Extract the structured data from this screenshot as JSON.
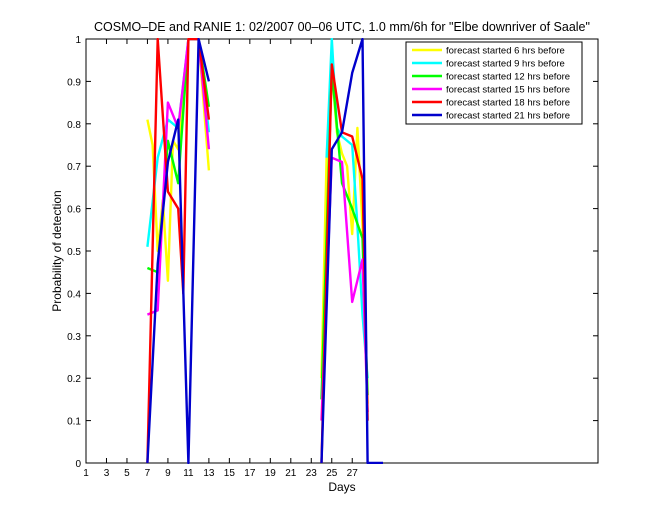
{
  "chart_data": {
    "type": "line",
    "title": "COSMO–DE and RANIE 1: 02/2007 00–06 UTC, 1.0 mm/6h for \"Elbe downriver of Saale\"",
    "xlabel": "Days",
    "ylabel": "Probability of detection",
    "xlim": [
      1,
      51
    ],
    "ylim": [
      0,
      1
    ],
    "xticks": [
      "1",
      "3",
      "5",
      "7",
      "9",
      "11",
      "13",
      "15",
      "17",
      "19",
      "21",
      "23",
      "25",
      "27"
    ],
    "xtick_values": [
      1,
      3,
      5,
      7,
      9,
      11,
      13,
      15,
      17,
      19,
      21,
      23,
      25,
      27
    ],
    "yticks": [
      "0",
      "0.1",
      "0.2",
      "0.3",
      "0.4",
      "0.5",
      "0.6",
      "0.7",
      "0.8",
      "0.9",
      "1"
    ],
    "ytick_values": [
      0,
      0.1,
      0.2,
      0.3,
      0.4,
      0.5,
      0.6,
      0.7,
      0.8,
      0.9,
      1
    ],
    "grid": false,
    "legend_position": "top-right",
    "series": [
      {
        "name": "forecast started 6 hrs before",
        "color": "#ffff00",
        "points": [
          [
            7,
            0.81
          ],
          [
            7.5,
            0.75
          ],
          [
            8,
            0.5
          ],
          [
            8.5,
            0.62
          ],
          [
            9,
            0.43
          ],
          [
            9.5,
            0.76
          ],
          [
            10,
            0.74
          ],
          [
            11,
            1.0
          ],
          [
            12,
            1.0
          ],
          [
            13,
            0.69
          ]
        ],
        "segments": [
          [
            [
              24,
              0.2
            ],
            [
              24.5,
              0.72
            ],
            [
              25,
              0.93
            ],
            [
              25.5,
              0.78
            ],
            [
              26,
              0.73
            ],
            [
              26.5,
              0.7
            ],
            [
              27,
              0.54
            ],
            [
              27.5,
              0.79
            ],
            [
              28,
              0.56
            ],
            [
              28.5,
              0.14
            ]
          ]
        ]
      },
      {
        "name": "forecast started 9 hrs before",
        "color": "#00ffff",
        "points": [
          [
            7,
            0.51
          ],
          [
            8,
            0.72
          ],
          [
            9,
            0.81
          ],
          [
            10,
            0.79
          ],
          [
            11,
            1.0
          ],
          [
            12,
            1.0
          ],
          [
            13,
            0.78
          ]
        ],
        "segments": [
          [
            [
              24.5,
              0.72
            ],
            [
              25,
              1.0
            ],
            [
              25.5,
              0.79
            ],
            [
              26,
              0.77
            ],
            [
              27,
              0.75
            ],
            [
              27.5,
              0.56
            ],
            [
              28,
              0.35
            ],
            [
              28.5,
              0.2
            ]
          ]
        ]
      },
      {
        "name": "forecast started 12 hrs before",
        "color": "#00ff00",
        "points": [
          [
            7,
            0.46
          ],
          [
            8,
            0.45
          ],
          [
            9,
            0.76
          ],
          [
            10,
            0.66
          ],
          [
            11,
            1.0
          ],
          [
            12,
            1.0
          ],
          [
            13,
            0.84
          ]
        ],
        "segments": [
          [
            [
              24,
              0.15
            ],
            [
              25,
              0.93
            ],
            [
              26,
              0.66
            ],
            [
              27,
              0.6
            ],
            [
              28,
              0.53
            ],
            [
              28.5,
              0.16
            ]
          ]
        ]
      },
      {
        "name": "forecast started 15 hrs before",
        "color": "#ff00ff",
        "points": [
          [
            7,
            0.35
          ],
          [
            8,
            0.36
          ],
          [
            9,
            0.85
          ],
          [
            10,
            0.79
          ],
          [
            11,
            1.0
          ],
          [
            12,
            1.0
          ],
          [
            13,
            0.74
          ]
        ],
        "segments": [
          [
            [
              24,
              0.1
            ],
            [
              25,
              0.72
            ],
            [
              26,
              0.71
            ],
            [
              27,
              0.38
            ],
            [
              28,
              0.48
            ],
            [
              28.5,
              0.12
            ]
          ]
        ]
      },
      {
        "name": "forecast started 18 hrs before",
        "color": "#ff0000",
        "points": [
          [
            7,
            0.0
          ],
          [
            8,
            1.0
          ],
          [
            9,
            0.64
          ],
          [
            10,
            0.6
          ],
          [
            10.5,
            0.4
          ],
          [
            11,
            1.0
          ],
          [
            12,
            1.0
          ],
          [
            13,
            0.81
          ]
        ],
        "segments": [
          [
            [
              24,
              0.0
            ],
            [
              25,
              0.94
            ],
            [
              26,
              0.78
            ],
            [
              27,
              0.77
            ],
            [
              28,
              0.67
            ],
            [
              28.5,
              0.1
            ]
          ]
        ]
      },
      {
        "name": "forecast started 21 hrs before",
        "color": "#0000cc",
        "points": [
          [
            7,
            0.0
          ],
          [
            8,
            0.47
          ],
          [
            9,
            0.71
          ],
          [
            10,
            0.81
          ],
          [
            11,
            0.0
          ],
          [
            12,
            1.0
          ],
          [
            13,
            0.9
          ]
        ],
        "segments": [
          [
            [
              24,
              0.0
            ],
            [
              25,
              0.74
            ],
            [
              26,
              0.78
            ],
            [
              27,
              0.92
            ],
            [
              28,
              1.0
            ],
            [
              28.5,
              0.0
            ],
            [
              30,
              0.0
            ]
          ]
        ]
      }
    ]
  }
}
